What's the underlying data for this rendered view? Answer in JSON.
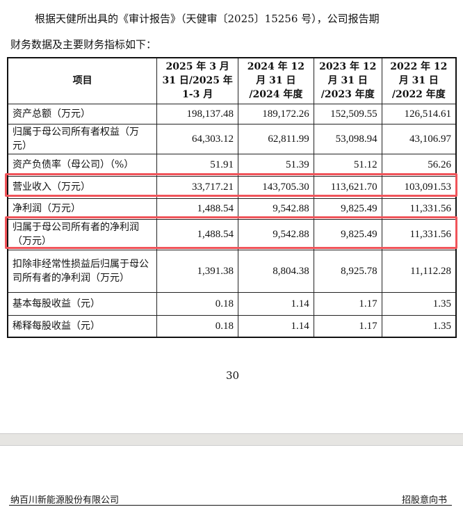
{
  "intro": {
    "line1": "根据天健所出具的《审计报告》（天健审〔2025〕15256 号），公司报告期",
    "line2": "财务数据及主要财务指标如下："
  },
  "table": {
    "headers": [
      "项目",
      "2025 年 3 月 31 日/2025 年 1-3 月",
      "2024 年 12 月 31 日 /2024 年度",
      "2023 年 12 月 31 日 /2023 年度",
      "2022 年 12 月 31 日 /2022 年度"
    ],
    "rows": [
      {
        "label": "资产总额（万元）",
        "values": [
          "198,137.48",
          "189,172.26",
          "152,509.55",
          "126,514.61"
        ]
      },
      {
        "label": "归属于母公司所有者权益（万元）",
        "values": [
          "64,303.12",
          "62,811.99",
          "53,098.94",
          "43,106.97"
        ]
      },
      {
        "label": "资产负债率（母公司）（%）",
        "values": [
          "51.91",
          "51.39",
          "51.12",
          "56.26"
        ]
      },
      {
        "label": "营业收入（万元）",
        "values": [
          "33,717.21",
          "143,705.30",
          "113,621.70",
          "103,091.53"
        ],
        "highlighted": true
      },
      {
        "label": "净利润（万元）",
        "values": [
          "1,488.54",
          "9,542.88",
          "9,825.49",
          "11,331.56"
        ]
      },
      {
        "label": "归属于母公司所有者的净利润（万元）",
        "values": [
          "1,488.54",
          "9,542.88",
          "9,825.49",
          "11,331.56"
        ],
        "highlighted": true
      },
      {
        "label": "扣除非经常性损益后归属于母公司所有者的净利润（万元）",
        "values": [
          "1,391.38",
          "8,804.38",
          "8,925.78",
          "11,112.28"
        ]
      },
      {
        "label": "基本每股收益（元）",
        "values": [
          "0.18",
          "1.14",
          "1.17",
          "1.35"
        ]
      },
      {
        "label": "稀释每股收益（元）",
        "values": [
          "0.18",
          "1.14",
          "1.17",
          "1.35"
        ]
      }
    ]
  },
  "page_number": "30",
  "footer": {
    "company": "纳百川新能源股份有限公司",
    "doc_type": "招股意向书"
  },
  "highlight_color": "#f0545a"
}
